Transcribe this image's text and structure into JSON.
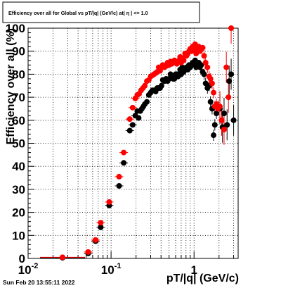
{
  "chart_data": {
    "type": "scatter",
    "title": "Efficiency over all for Global vs pT/|q| (GeV/c) at| η | <= 1.0",
    "xlabel": "pT/|q| (GeV/c)",
    "ylabel": "Efficiency over all (%)",
    "x_scale": "log",
    "xlim": [
      0.01,
      3.4
    ],
    "ylim": [
      0,
      100
    ],
    "x_ticks": [
      "10^-2",
      "10^-1",
      "1"
    ],
    "y_ticks": [
      "0",
      "10",
      "20",
      "30",
      "40",
      "50",
      "60",
      "70",
      "80",
      "90",
      "100"
    ],
    "grid": true,
    "series": [
      {
        "color": "#000000",
        "points": [
          [
            0.026,
            0.3
          ],
          [
            0.053,
            2.2
          ],
          [
            0.065,
            7.5
          ],
          [
            0.075,
            13.5
          ],
          [
            0.095,
            23
          ],
          [
            0.125,
            31.5
          ],
          [
            0.142,
            41.5
          ],
          [
            0.168,
            55.5
          ],
          [
            0.182,
            58
          ],
          [
            0.196,
            62
          ],
          [
            0.207,
            64
          ],
          [
            0.215,
            61
          ],
          [
            0.225,
            64
          ],
          [
            0.235,
            65
          ],
          [
            0.245,
            66
          ],
          [
            0.255,
            67
          ],
          [
            0.27,
            68
          ],
          [
            0.285,
            71
          ],
          [
            0.3,
            72
          ],
          [
            0.315,
            73
          ],
          [
            0.33,
            73
          ],
          [
            0.345,
            72.5
          ],
          [
            0.36,
            74
          ],
          [
            0.375,
            74
          ],
          [
            0.39,
            74
          ],
          [
            0.405,
            75
          ],
          [
            0.42,
            77.5
          ],
          [
            0.44,
            77
          ],
          [
            0.46,
            78
          ],
          [
            0.48,
            77
          ],
          [
            0.5,
            78
          ],
          [
            0.52,
            80
          ],
          [
            0.54,
            79
          ],
          [
            0.56,
            78
          ],
          [
            0.58,
            78
          ],
          [
            0.6,
            80
          ],
          [
            0.62,
            80
          ],
          [
            0.64,
            79
          ],
          [
            0.66,
            80
          ],
          [
            0.68,
            82
          ],
          [
            0.7,
            80
          ],
          [
            0.72,
            83
          ],
          [
            0.75,
            81
          ],
          [
            0.78,
            82
          ],
          [
            0.81,
            83
          ],
          [
            0.84,
            82
          ],
          [
            0.87,
            84
          ],
          [
            0.9,
            83
          ],
          [
            0.93,
            84
          ],
          [
            0.96,
            85
          ],
          [
            1.0,
            85
          ],
          [
            1.03,
            86
          ],
          [
            1.06,
            83
          ],
          [
            1.1,
            84
          ],
          [
            1.14,
            85
          ],
          [
            1.18,
            83
          ],
          [
            1.22,
            84
          ],
          [
            1.27,
            81
          ],
          [
            1.32,
            80
          ],
          [
            1.38,
            76
          ],
          [
            1.45,
            74
          ],
          [
            1.52,
            75
          ],
          [
            1.58,
            68
          ],
          [
            1.65,
            65
          ],
          [
            1.72,
            53.5
          ],
          [
            1.78,
            58
          ],
          [
            1.86,
            63
          ],
          [
            1.95,
            66
          ],
          [
            2.05,
            65
          ],
          [
            2.2,
            57
          ],
          [
            2.3,
            63
          ],
          [
            2.5,
            58
          ],
          [
            2.65,
            77
          ],
          [
            2.8,
            80
          ],
          [
            3.0,
            60
          ]
        ]
      },
      {
        "color": "#ff0000",
        "points": [
          [
            0.026,
            0.5
          ],
          [
            0.053,
            2.8
          ],
          [
            0.065,
            8
          ],
          [
            0.075,
            15.5
          ],
          [
            0.095,
            24.5
          ],
          [
            0.125,
            35.5
          ],
          [
            0.142,
            46
          ],
          [
            0.168,
            60.5
          ],
          [
            0.182,
            65.5
          ],
          [
            0.196,
            69.5
          ],
          [
            0.207,
            71
          ],
          [
            0.218,
            71.5
          ],
          [
            0.23,
            73
          ],
          [
            0.242,
            74
          ],
          [
            0.255,
            75
          ],
          [
            0.27,
            77
          ],
          [
            0.285,
            77.5
          ],
          [
            0.3,
            79
          ],
          [
            0.315,
            79.5
          ],
          [
            0.33,
            80
          ],
          [
            0.345,
            80.5
          ],
          [
            0.36,
            81
          ],
          [
            0.375,
            83
          ],
          [
            0.39,
            81.5
          ],
          [
            0.405,
            83
          ],
          [
            0.42,
            84
          ],
          [
            0.44,
            83
          ],
          [
            0.46,
            83.5
          ],
          [
            0.48,
            85
          ],
          [
            0.5,
            84
          ],
          [
            0.52,
            85.5
          ],
          [
            0.54,
            84.5
          ],
          [
            0.56,
            85.5
          ],
          [
            0.58,
            86
          ],
          [
            0.6,
            85
          ],
          [
            0.62,
            84.5
          ],
          [
            0.64,
            85.5
          ],
          [
            0.66,
            86
          ],
          [
            0.68,
            87.5
          ],
          [
            0.7,
            85
          ],
          [
            0.72,
            87
          ],
          [
            0.75,
            86
          ],
          [
            0.78,
            89
          ],
          [
            0.81,
            88
          ],
          [
            0.84,
            89
          ],
          [
            0.87,
            90
          ],
          [
            0.9,
            91
          ],
          [
            0.93,
            90
          ],
          [
            0.96,
            92
          ],
          [
            1.0,
            91
          ],
          [
            1.03,
            93
          ],
          [
            1.06,
            89
          ],
          [
            1.1,
            90
          ],
          [
            1.14,
            92
          ],
          [
            1.18,
            90
          ],
          [
            1.22,
            91
          ],
          [
            1.27,
            91.5
          ],
          [
            1.32,
            88
          ],
          [
            1.38,
            85
          ],
          [
            1.45,
            83
          ],
          [
            1.52,
            79
          ],
          [
            1.58,
            78
          ],
          [
            1.65,
            76
          ],
          [
            1.72,
            72
          ],
          [
            1.78,
            66
          ],
          [
            1.86,
            67
          ],
          [
            1.95,
            65
          ],
          [
            2.05,
            66
          ],
          [
            2.15,
            60
          ],
          [
            2.3,
            56
          ],
          [
            2.45,
            83
          ],
          [
            2.6,
            70
          ],
          [
            2.8,
            100
          ]
        ]
      }
    ]
  },
  "footer": {
    "timestamp": "Sun Feb 20 13:55:11 2022"
  }
}
